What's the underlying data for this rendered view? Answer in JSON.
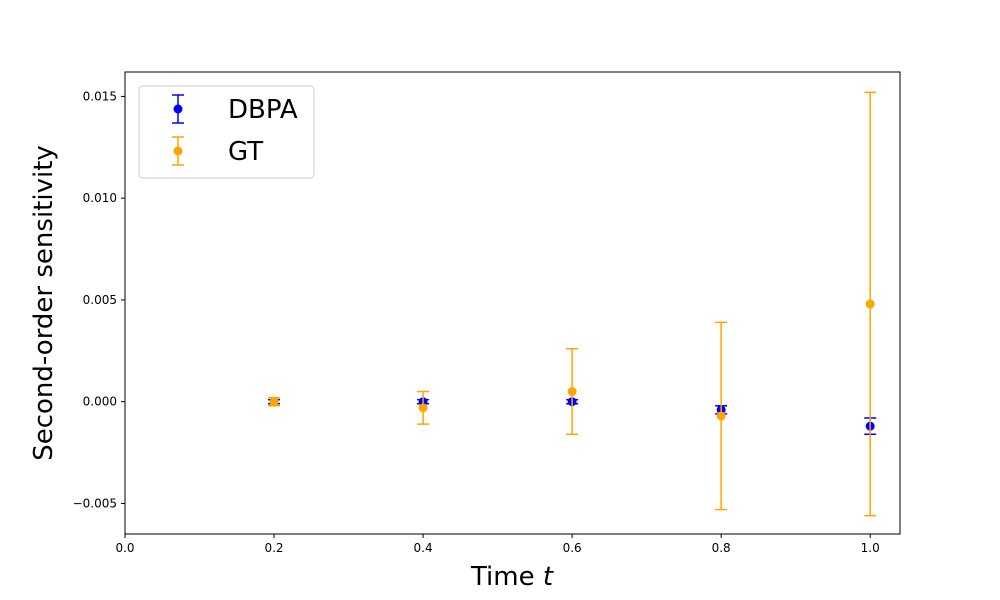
{
  "chart_data": {
    "type": "scatter",
    "title": "",
    "xlabel": "Time",
    "xlabel_var": "t",
    "ylabel": "Second-order sensitivity",
    "xlim": [
      0.0,
      1.04
    ],
    "ylim": [
      -0.0065,
      0.0162
    ],
    "x_ticks": [
      0.0,
      0.2,
      0.4,
      0.6,
      0.8,
      1.0
    ],
    "x_tick_labels": [
      "0.0",
      "0.2",
      "0.4",
      "0.6",
      "0.8",
      "1.0"
    ],
    "y_ticks": [
      -0.005,
      0.0,
      0.005,
      0.01,
      0.015
    ],
    "y_tick_labels": [
      "−0.005",
      "0.000",
      "0.005",
      "0.010",
      "0.015"
    ],
    "grid": false,
    "legend_position": "top-left",
    "series": [
      {
        "name": "DBPA",
        "color": "#0000ff",
        "points": [
          {
            "x": 0.2,
            "y": 0.0,
            "err": 0.0001
          },
          {
            "x": 0.4,
            "y": 0.0,
            "err": 0.0001
          },
          {
            "x": 0.6,
            "y": 0.0,
            "err": 0.0001
          },
          {
            "x": 0.8,
            "y": -0.0004,
            "err": 0.0002
          },
          {
            "x": 1.0,
            "y": -0.0012,
            "err": 0.0004
          }
        ]
      },
      {
        "name": "GT",
        "color": "#ffa500",
        "points": [
          {
            "x": 0.2,
            "y": 0.0,
            "err": 0.0002
          },
          {
            "x": 0.4,
            "y": -0.0003,
            "err": 0.0008
          },
          {
            "x": 0.6,
            "y": 0.0005,
            "err": 0.0021
          },
          {
            "x": 0.8,
            "y": -0.0007,
            "err": 0.0046
          },
          {
            "x": 1.0,
            "y": 0.0048,
            "err": 0.0104
          }
        ]
      }
    ]
  }
}
